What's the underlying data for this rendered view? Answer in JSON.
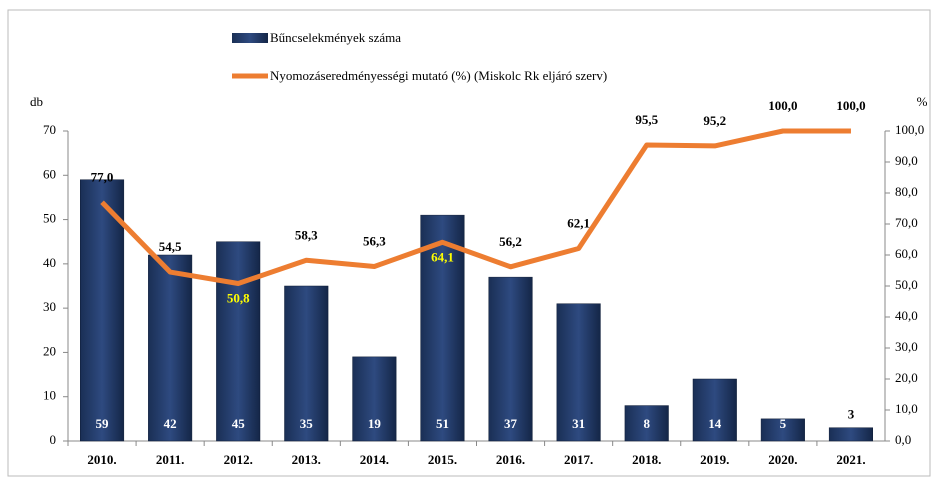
{
  "chart_data": {
    "type": "combo",
    "categories": [
      "2010.",
      "2011.",
      "2012.",
      "2013.",
      "2014.",
      "2015.",
      "2016.",
      "2017.",
      "2018.",
      "2019.",
      "2020.",
      "2021."
    ],
    "series": [
      {
        "name": "Bűncselekmények száma",
        "type": "bar",
        "color": "#1f3864",
        "values": [
          59,
          42,
          45,
          35,
          19,
          51,
          37,
          31,
          8,
          14,
          5,
          3
        ]
      },
      {
        "name": "Nyomozáseredményességi mutató (%) (Miskolc Rk eljáró szerv)",
        "type": "line",
        "color": "#ed7d31",
        "axis": "y2",
        "values": [
          77.0,
          54.5,
          50.8,
          58.3,
          56.3,
          64.1,
          56.2,
          62.1,
          95.5,
          95.2,
          100.0,
          100.0
        ],
        "value_labels": [
          "77,0",
          "54,5",
          "50,8",
          "58,3",
          "56,3",
          "64,1",
          "56,2",
          "62,1",
          "95,5",
          "95,2",
          "100,0",
          "100,0"
        ],
        "label_colors": [
          "#000000",
          "#000000",
          "#ffff00",
          "#000000",
          "#000000",
          "#ffff00",
          "#000000",
          "#000000",
          "#000000",
          "#000000",
          "#000000",
          "#000000"
        ]
      }
    ],
    "ylabel": "db",
    "y2label": "%",
    "ylim": [
      0,
      70
    ],
    "yticks": [
      0,
      10,
      20,
      30,
      40,
      50,
      60,
      70
    ],
    "y2lim": [
      0,
      100
    ],
    "y2ticks": [
      {
        "value": 0,
        "label": "0,0"
      },
      {
        "value": 10,
        "label": "10,0"
      },
      {
        "value": 20,
        "label": "20,0"
      },
      {
        "value": 30,
        "label": "30,0"
      },
      {
        "value": 40,
        "label": "40,0"
      },
      {
        "value": 50,
        "label": "50,0"
      },
      {
        "value": 60,
        "label": "60,0"
      },
      {
        "value": 70,
        "label": "70,0"
      },
      {
        "value": 80,
        "label": "80,0"
      },
      {
        "value": 90,
        "label": "90,0"
      },
      {
        "value": 100,
        "label": "100,0"
      }
    ],
    "grid": false
  }
}
